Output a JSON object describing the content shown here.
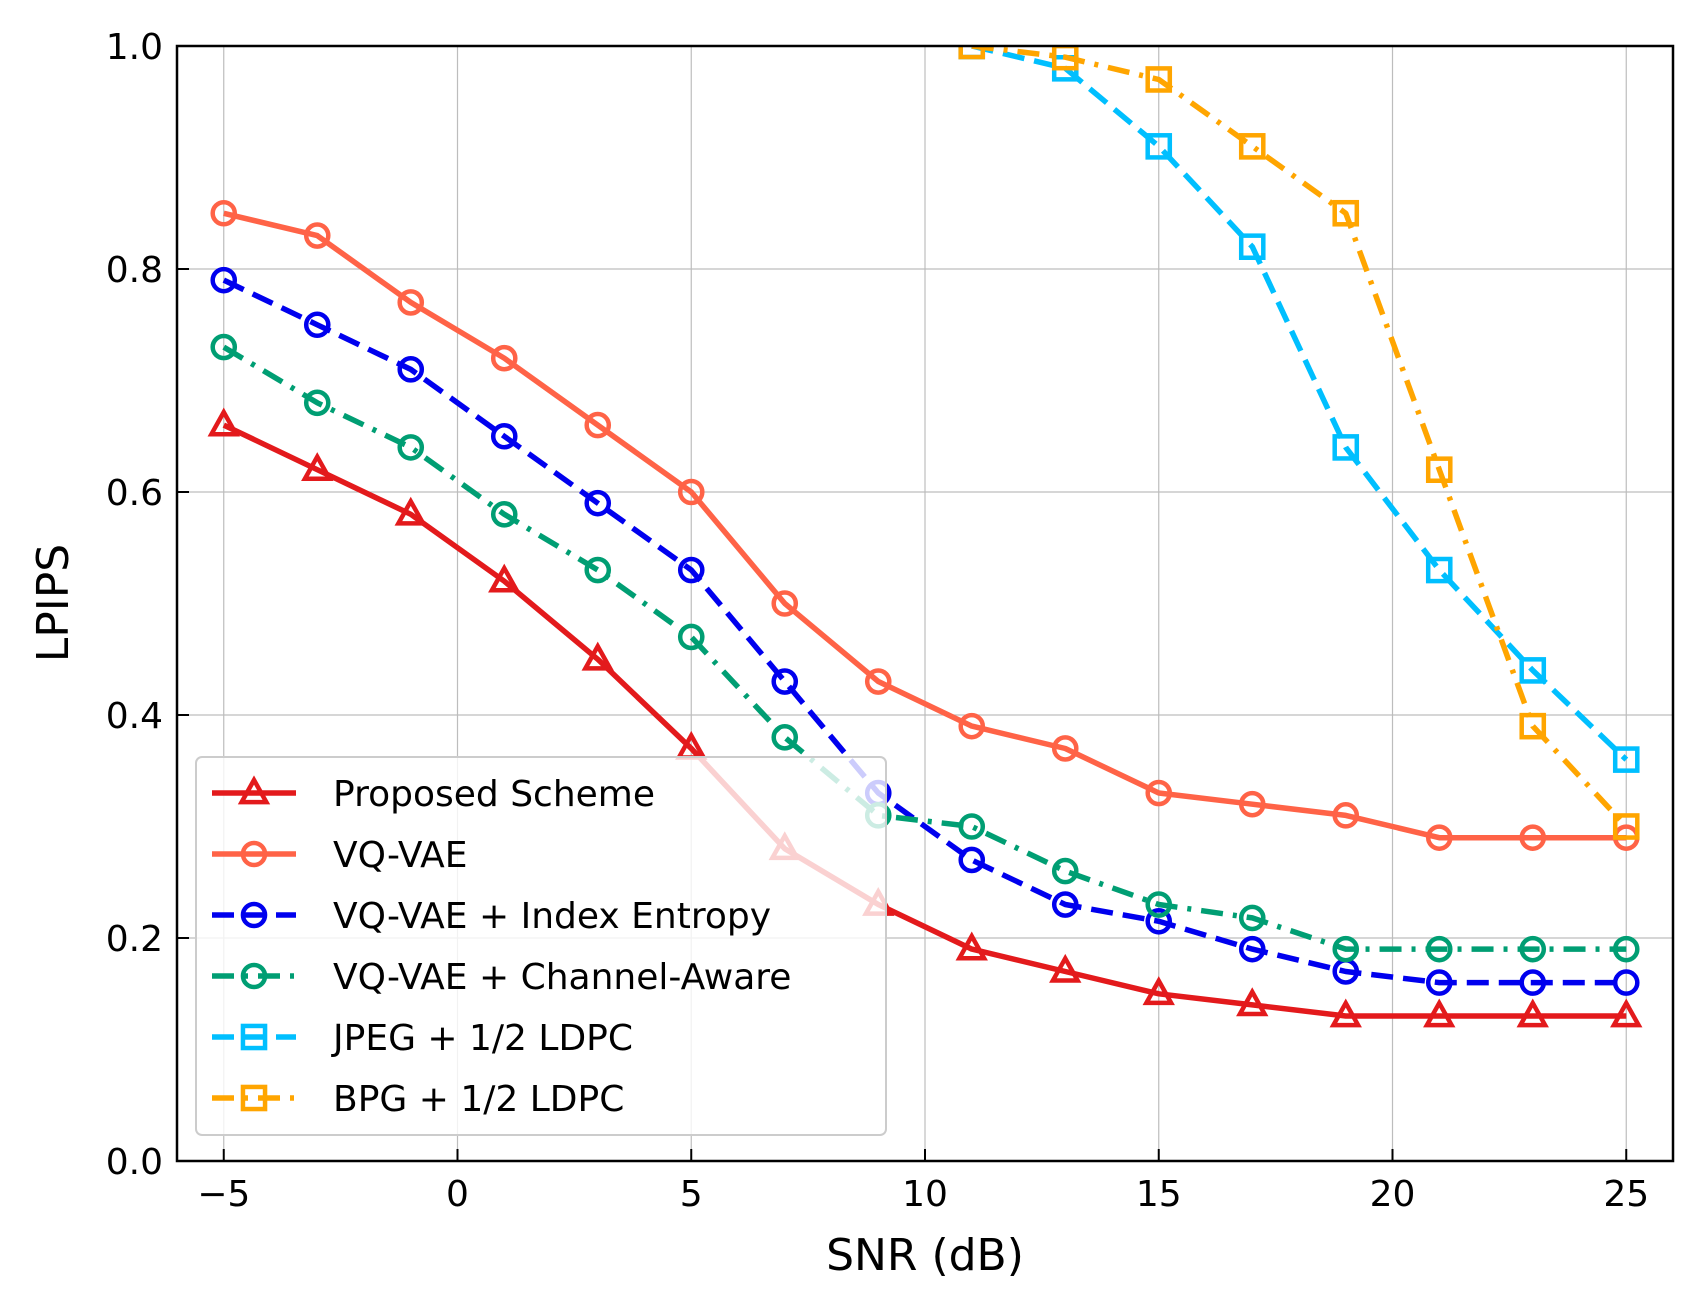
{
  "chart_data": {
    "type": "line",
    "title": "",
    "xlabel": "SNR (dB)",
    "ylabel": "LPIPS",
    "xlim": [
      -6,
      26
    ],
    "ylim": [
      0.0,
      1.0
    ],
    "xticks": [
      -5,
      0,
      5,
      10,
      15,
      20,
      25
    ],
    "xtick_labels": [
      "−5",
      "0",
      "5",
      "10",
      "15",
      "20",
      "25"
    ],
    "yticks": [
      0.0,
      0.2,
      0.4,
      0.6,
      0.8,
      1.0
    ],
    "ytick_labels": [
      "0.0",
      "0.2",
      "0.4",
      "0.6",
      "0.8",
      "1.0"
    ],
    "grid": true,
    "legend_position": "lower-left",
    "series": [
      {
        "name": "Proposed Scheme",
        "color": "#e31a1c",
        "marker": "triangle",
        "linestyle": "solid",
        "x": [
          -5,
          -3,
          -1,
          1,
          3,
          5,
          7,
          9,
          11,
          13,
          15,
          17,
          19,
          21,
          23,
          25
        ],
        "y": [
          0.66,
          0.62,
          0.58,
          0.52,
          0.45,
          0.37,
          0.28,
          0.23,
          0.19,
          0.17,
          0.15,
          0.14,
          0.13,
          0.13,
          0.13,
          0.13
        ]
      },
      {
        "name": "VQ-VAE",
        "color": "#ff6347",
        "marker": "circle",
        "linestyle": "solid",
        "x": [
          -5,
          -3,
          -1,
          1,
          3,
          5,
          7,
          9,
          11,
          13,
          15,
          17,
          19,
          21,
          23,
          25
        ],
        "y": [
          0.85,
          0.83,
          0.77,
          0.72,
          0.66,
          0.6,
          0.5,
          0.43,
          0.39,
          0.37,
          0.33,
          0.32,
          0.31,
          0.29,
          0.29,
          0.29
        ]
      },
      {
        "name": "VQ-VAE + Index Entropy",
        "color": "#0000ee",
        "marker": "circle",
        "linestyle": "dashed",
        "x": [
          -5,
          -3,
          -1,
          1,
          3,
          5,
          7,
          9,
          11,
          13,
          15,
          17,
          19,
          21,
          23,
          25
        ],
        "y": [
          0.79,
          0.75,
          0.71,
          0.65,
          0.59,
          0.53,
          0.43,
          0.33,
          0.27,
          0.23,
          0.215,
          0.19,
          0.17,
          0.16,
          0.16,
          0.16
        ]
      },
      {
        "name": "VQ-VAE + Channel-Aware",
        "color": "#009e73",
        "marker": "circle",
        "linestyle": "dashdot",
        "x": [
          -5,
          -3,
          -1,
          1,
          3,
          5,
          7,
          9,
          11,
          13,
          15,
          17,
          19,
          21,
          23,
          25
        ],
        "y": [
          0.73,
          0.68,
          0.64,
          0.58,
          0.53,
          0.47,
          0.38,
          0.31,
          0.3,
          0.26,
          0.23,
          0.218,
          0.19,
          0.19,
          0.19,
          0.19
        ]
      },
      {
        "name": "JPEG + 1/2 LDPC",
        "color": "#00bfff",
        "marker": "square",
        "linestyle": "dashed",
        "x": [
          11,
          13,
          15,
          17,
          19,
          21,
          23,
          25
        ],
        "y": [
          1.0,
          0.98,
          0.91,
          0.82,
          0.64,
          0.53,
          0.44,
          0.36
        ]
      },
      {
        "name": "BPG + 1/2 LDPC",
        "color": "#ffa500",
        "marker": "square",
        "linestyle": "dashdot",
        "x": [
          11,
          13,
          15,
          17,
          19,
          21,
          23,
          25
        ],
        "y": [
          1.0,
          0.99,
          0.97,
          0.91,
          0.85,
          0.62,
          0.39,
          0.3
        ]
      }
    ]
  }
}
